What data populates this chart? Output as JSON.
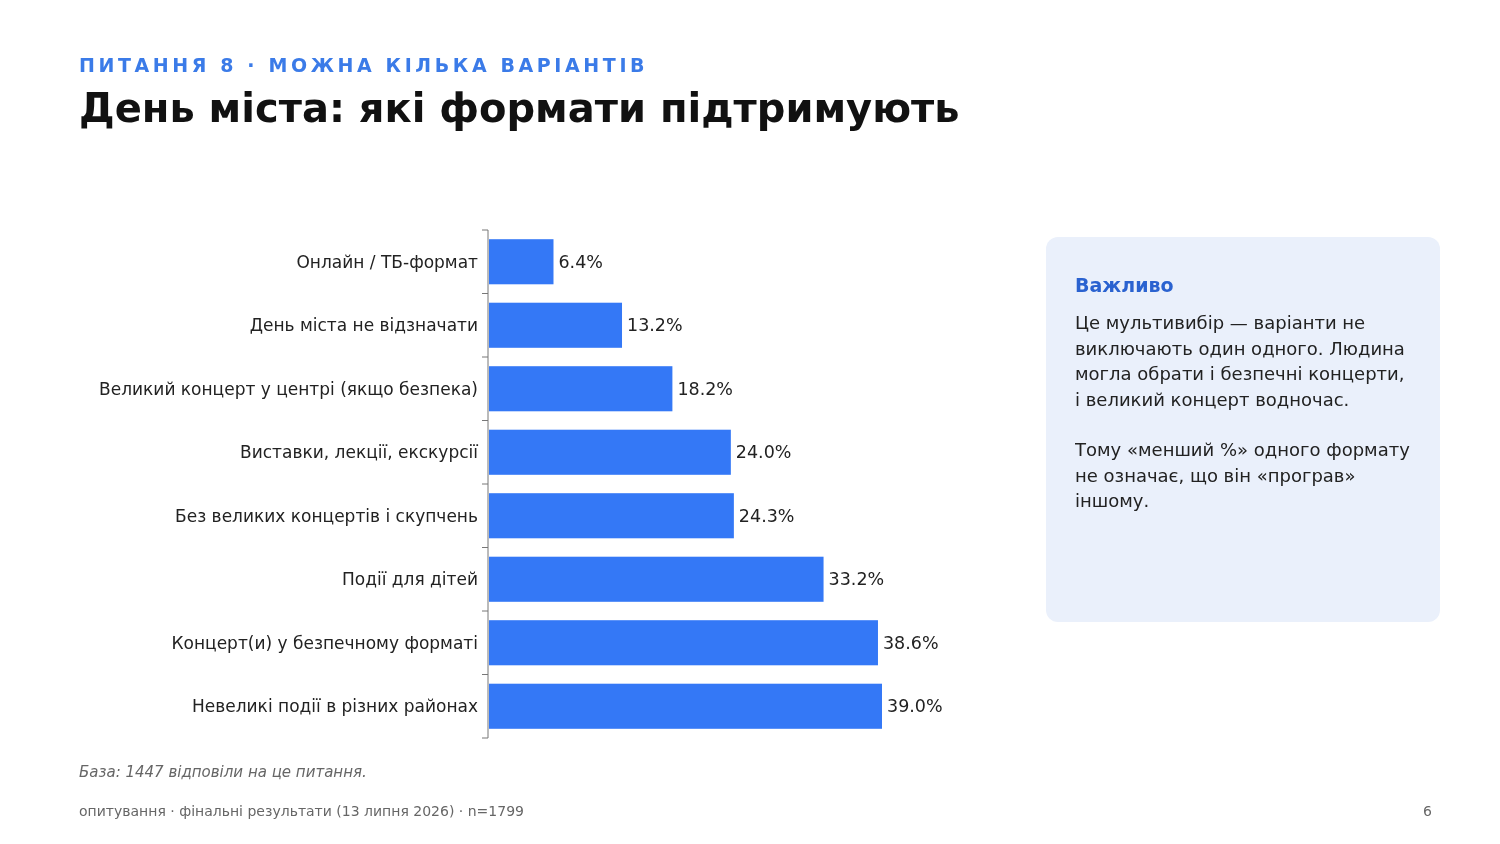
{
  "chart_data": {
    "type": "bar",
    "orientation": "horizontal",
    "subtitle": "ПИТАННЯ 8 · МОЖНА КІЛЬКА ВАРІАНТІВ",
    "title": "День міста: які формати підтримують",
    "categories": [
      "Онлайн / ТБ-формат",
      "День міста не відзначати",
      "Великий концерт у центрі (якщо безпека)",
      "Виставки, лекції, екскурсії",
      "Без великих концертів і скупчень",
      "Події для дітей",
      "Концерт(и) у безпечному форматі",
      "Невеликі події в різних районах"
    ],
    "values": [
      6.4,
      13.2,
      18.2,
      24.0,
      24.3,
      33.2,
      38.6,
      39.0
    ],
    "value_labels": [
      "6.4%",
      "13.2%",
      "18.2%",
      "24.0%",
      "24.3%",
      "33.2%",
      "38.6%",
      "39.0%"
    ],
    "color": "#3478f6",
    "annotations": [
      "База: 1447 відповіли на це питання.",
      "опитування · фінальні результати (13 липня 2026) · n=1799",
      "6",
      "Важливо",
      "Це мультивибір — варіанти не виключають один одного. Людина могла обрати і безпечні концерти, і великий концерт водночас.",
      "Тому «менший %» одного формату не означає, що він «програв» іншому."
    ]
  }
}
